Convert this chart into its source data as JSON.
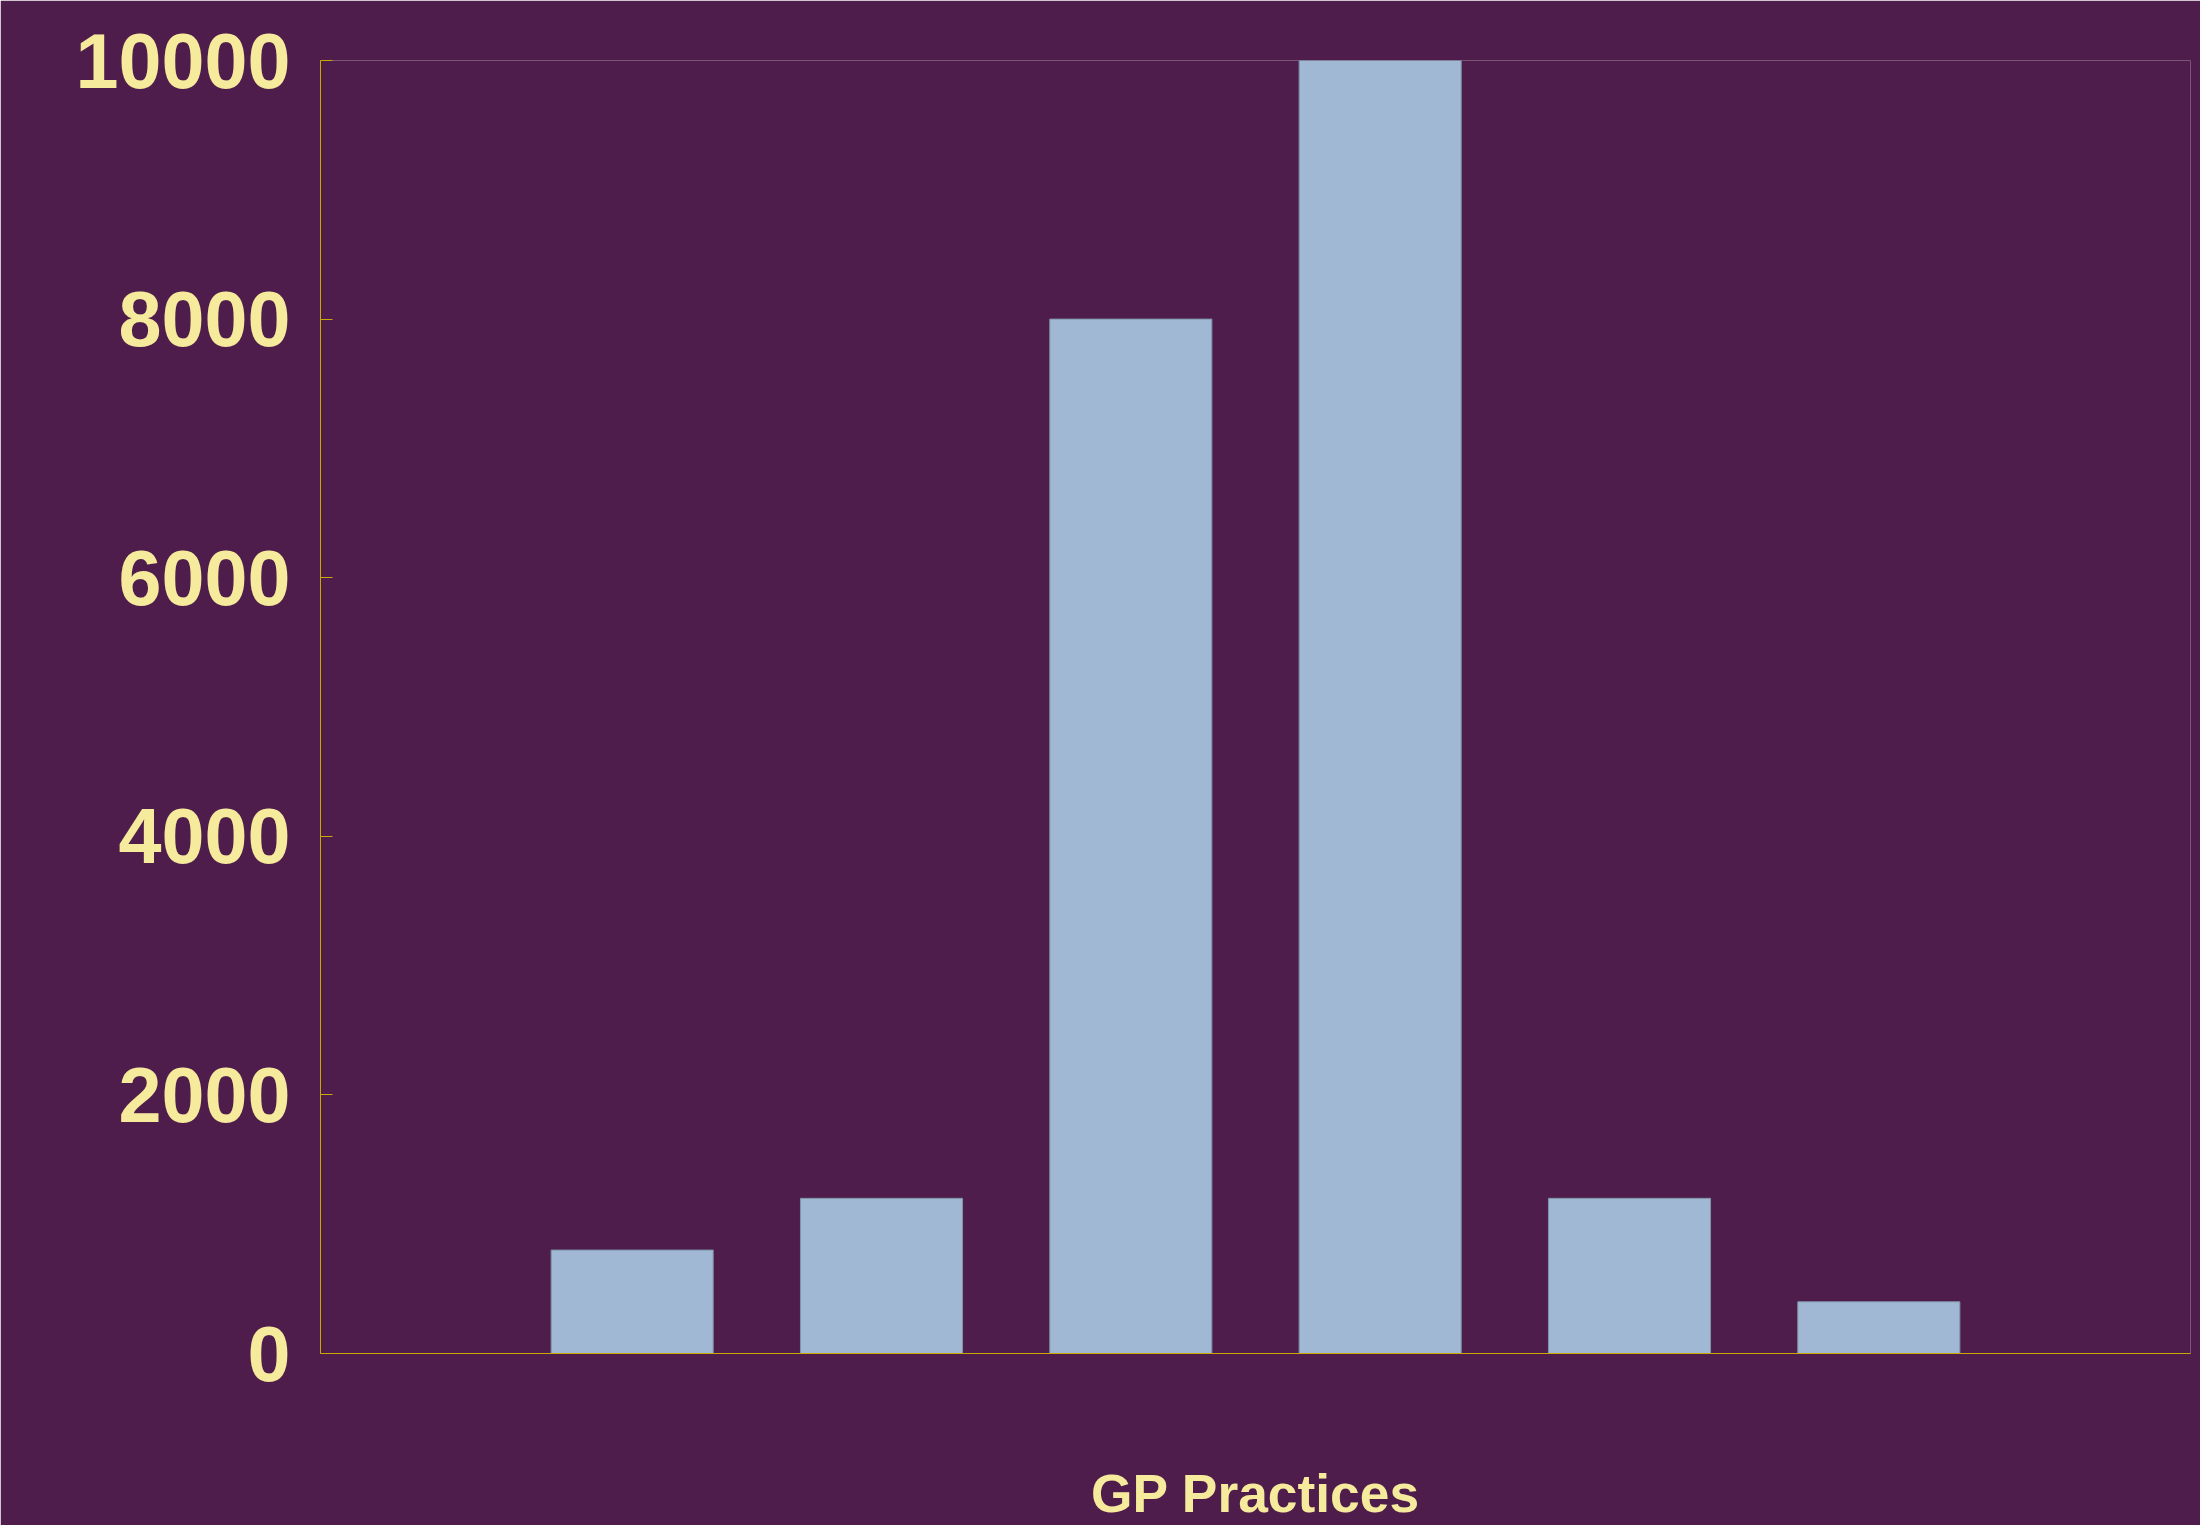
{
  "chart_data": {
    "type": "bar",
    "xlabel": "GP Practices",
    "categories": [
      null,
      null,
      null,
      null,
      null,
      null
    ],
    "values": [
      800,
      1200,
      8000,
      10000,
      1200,
      400
    ],
    "color": "#a0b8d4",
    "ylim": [
      0,
      10000
    ],
    "yticks": [
      0,
      2000,
      4000,
      6000,
      8000,
      10000
    ],
    "grid": false
  }
}
